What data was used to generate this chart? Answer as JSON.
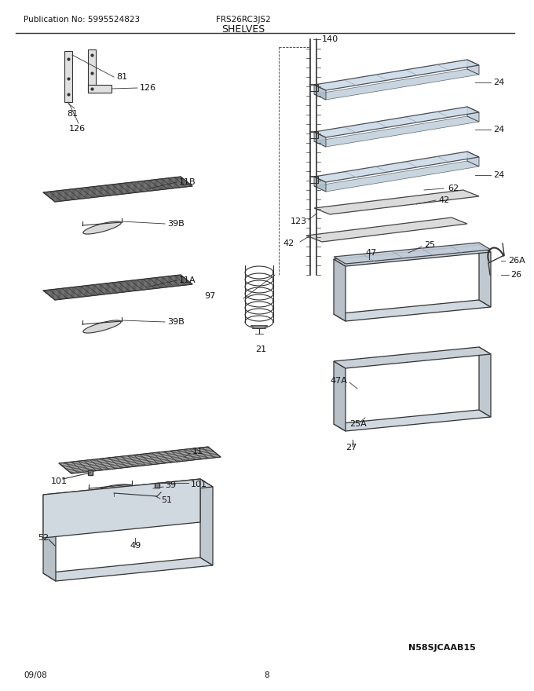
{
  "title": "SHELVES",
  "pub_no": "Publication No: 5995524823",
  "model": "FRS26RC3JS2",
  "date": "09/08",
  "page": "8",
  "watermark": "N58SJCAAB15",
  "bg_color": "#ffffff",
  "line_color": "#333333",
  "label_color": "#111111",
  "font_size": 8,
  "title_font_size": 9
}
